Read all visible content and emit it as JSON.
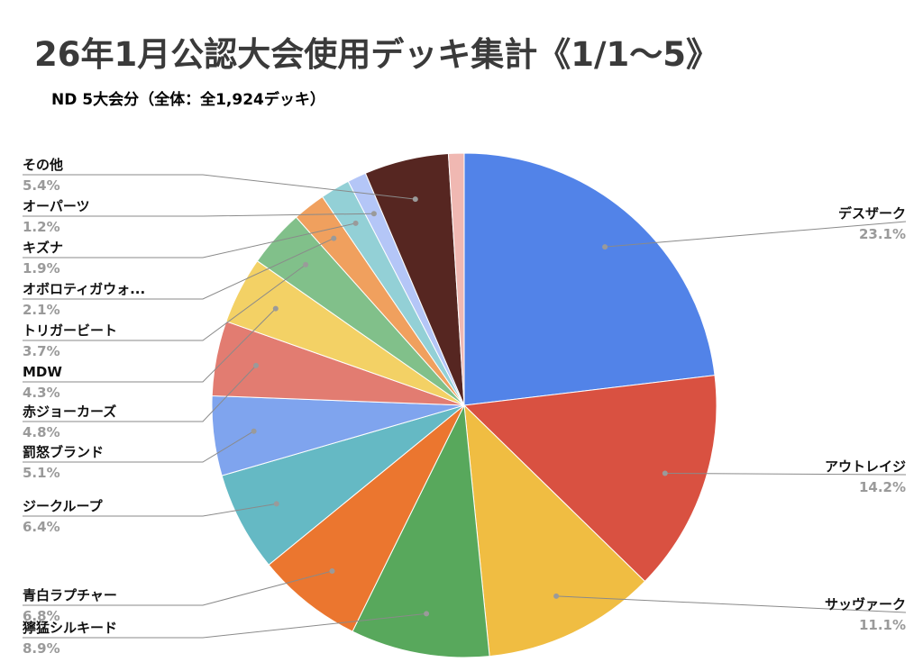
{
  "chart_data": {
    "type": "pie",
    "title": "26年1月公認大会使用デッキ集計《1/1〜5》",
    "subtitle": "ND 5大会分（全体：全1,924デッキ）",
    "slices": [
      {
        "label": "デスザーク",
        "value": 23.1,
        "display": "23.1%",
        "color": "#5283e8"
      },
      {
        "label": "アウトレイジ",
        "value": 14.2,
        "display": "14.2%",
        "color": "#d95141"
      },
      {
        "label": "サッヴァーク",
        "value": 11.1,
        "display": "11.1%",
        "color": "#f0bd42"
      },
      {
        "label": "獰猛シルキード",
        "value": 8.9,
        "display": "8.9%",
        "color": "#58a85c"
      },
      {
        "label": "青白ラプチャー",
        "value": 6.8,
        "display": "6.8%",
        "color": "#eb762f"
      },
      {
        "label": "ジークループ",
        "value": 6.4,
        "display": "6.4%",
        "color": "#65b9c4"
      },
      {
        "label": "罰怒ブランド",
        "value": 5.1,
        "display": "5.1%",
        "color": "#7fa4ee"
      },
      {
        "label": "赤ジョーカーズ",
        "value": 4.8,
        "display": "4.8%",
        "color": "#e27c71"
      },
      {
        "label": "MDW",
        "value": 4.3,
        "display": "4.3%",
        "color": "#f3d165"
      },
      {
        "label": "トリガービート",
        "value": 3.7,
        "display": "3.7%",
        "color": "#81c08a"
      },
      {
        "label": "オボロティガウォ...",
        "value": 2.1,
        "display": "2.1%",
        "color": "#f0a05e"
      },
      {
        "label": "キズナ",
        "value": 1.9,
        "display": "1.9%",
        "color": "#93d0d6"
      },
      {
        "label": "オーパーツ",
        "value": 1.2,
        "display": "1.2%",
        "color": "#b4c6f7"
      },
      {
        "label": "その他",
        "value": 5.4,
        "display": "5.4%",
        "color": "#562621"
      },
      {
        "label": "",
        "value": 1.0,
        "display": "",
        "color": "#f0b8b2"
      }
    ]
  }
}
